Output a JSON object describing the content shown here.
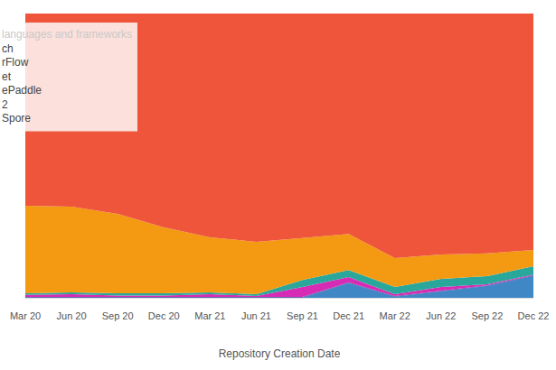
{
  "chart_data": {
    "type": "area",
    "stacked": true,
    "x_label": "Repository Creation Date",
    "legend_title": "languages and frameworks",
    "legend": "top-left",
    "grid": false,
    "tick_labels": "x",
    "categories": [
      "Mar 20",
      "Jun 20",
      "Sep 20",
      "Dec 20",
      "Mar 21",
      "Jun 21",
      "Sep 21",
      "Dec 21",
      "Mar 22",
      "Jun 22",
      "Sep 22",
      "Dec 22"
    ],
    "ylim": [
      0,
      100
    ],
    "yticks": [
      0,
      100
    ],
    "series": [
      {
        "name": "ch",
        "color": "#ef553b",
        "values": [
          67.6,
          67.9,
          70.5,
          75.2,
          78.7,
          80.3,
          79.0,
          77.5,
          86.0,
          84.8,
          84.4,
          83.2
        ]
      },
      {
        "name": "rFlow",
        "color": "#f39a12",
        "values": [
          30.8,
          30.2,
          27.9,
          23.2,
          19.4,
          18.4,
          14.7,
          12.7,
          10.2,
          8.5,
          8.0,
          5.7
        ]
      },
      {
        "name": "et",
        "color": "#2aa79b",
        "values": [
          0.6,
          0.6,
          0.8,
          0.8,
          0.6,
          0.7,
          2.5,
          2.5,
          2.5,
          2.9,
          2.8,
          2.9
        ]
      },
      {
        "name": "ePaddle",
        "color": "#d62cb5",
        "values": [
          0.7,
          1.0,
          0.5,
          0.5,
          1.0,
          0.3,
          3.5,
          1.9,
          0.7,
          1.3,
          0.4,
          0.3
        ]
      },
      {
        "name": "2",
        "color": "#4b3f9e",
        "values": [
          0.2,
          0.2,
          0.2,
          0.2,
          0.2,
          0.2,
          0.2,
          0.2,
          0.2,
          0.2,
          0.2,
          0.2
        ]
      },
      {
        "name": "Spore",
        "color": "#3f88c5",
        "values": [
          0.1,
          0.1,
          0.1,
          0.1,
          0.1,
          0.1,
          0.1,
          5.2,
          0.4,
          2.3,
          4.2,
          7.7
        ]
      }
    ]
  }
}
